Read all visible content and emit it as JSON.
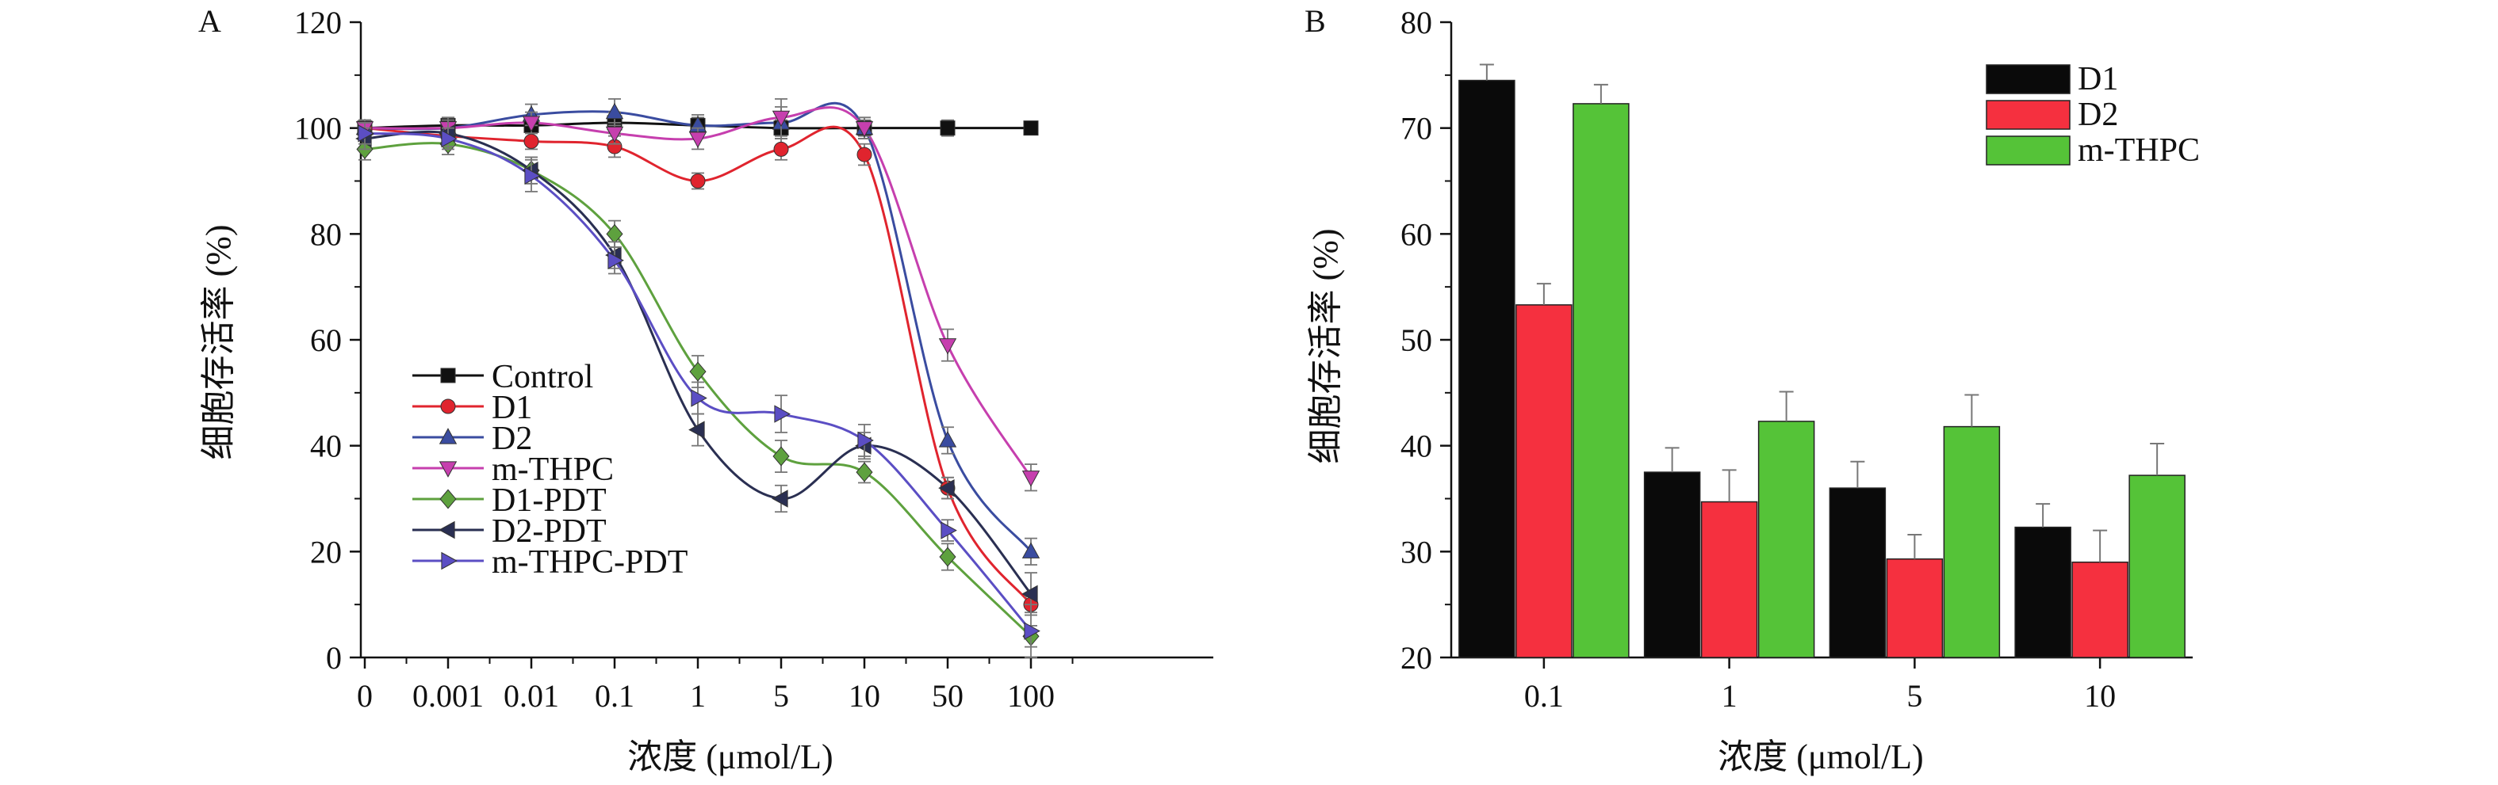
{
  "chart_data": [
    {
      "panel_label": "A",
      "type": "line",
      "xlabel": "浓度 (μmol/L)",
      "ylabel": "细胞存活率 (%)",
      "categories": [
        "0",
        "0.001",
        "0.01",
        "0.1",
        "1",
        "5",
        "10",
        "50",
        "100"
      ],
      "ylim": [
        0,
        120
      ],
      "yticks": [
        0,
        20,
        40,
        60,
        80,
        100,
        120
      ],
      "legend_position": "lower-left",
      "series": [
        {
          "name": "Control",
          "marker": "square",
          "color": "#111111",
          "values": [
            100,
            100.5,
            100.5,
            101,
            100.5,
            100,
            100,
            100,
            100
          ],
          "errors": [
            1.5,
            1.5,
            1.5,
            2,
            1.5,
            1.5,
            1.5,
            1.5,
            1
          ]
        },
        {
          "name": "D1",
          "marker": "circle",
          "color": "#e0242e",
          "values": [
            100,
            98.5,
            97.5,
            96.5,
            90,
            96,
            95,
            32,
            10
          ],
          "errors": [
            1.5,
            1.5,
            1.5,
            2,
            1.5,
            2,
            2,
            2,
            1.5
          ]
        },
        {
          "name": "D2",
          "marker": "triangle-up",
          "color": "#3a4ca0",
          "values": [
            100,
            100,
            102.5,
            103,
            100.5,
            101,
            100,
            41,
            20
          ],
          "errors": [
            1.5,
            2,
            2,
            2.5,
            2,
            3,
            2,
            2.5,
            2.5
          ]
        },
        {
          "name": "m-THPC",
          "marker": "triangle-down",
          "color": "#c63fae",
          "values": [
            100,
            100,
            101,
            99,
            98,
            102,
            100,
            59,
            34
          ],
          "errors": [
            1.5,
            1.5,
            2,
            2,
            2,
            3.5,
            2,
            3,
            2.5
          ]
        },
        {
          "name": "D1-PDT",
          "marker": "diamond",
          "color": "#5ea13e",
          "values": [
            96,
            97,
            92,
            80,
            54,
            38,
            35,
            19,
            4
          ],
          "errors": [
            2,
            2,
            2.5,
            2.5,
            3,
            3,
            2,
            2.5,
            2
          ]
        },
        {
          "name": "D2-PDT",
          "marker": "triangle-left",
          "color": "#2a2f52",
          "values": [
            98,
            99,
            92,
            76,
            43,
            30,
            40,
            32,
            12
          ],
          "errors": [
            2,
            2.5,
            2.5,
            2.5,
            3,
            2.5,
            2.5,
            2,
            4
          ]
        },
        {
          "name": "m-THPC-PDT",
          "marker": "triangle-right",
          "color": "#5b4ec4",
          "values": [
            99,
            98,
            91,
            75,
            49,
            46,
            41,
            24,
            5
          ],
          "errors": [
            2,
            2,
            3,
            2.5,
            3,
            3.5,
            3,
            2,
            5
          ]
        }
      ]
    },
    {
      "panel_label": "B",
      "type": "bar",
      "xlabel": "浓度 (μmol/L)",
      "ylabel": "细胞存活率 (%)",
      "categories": [
        "0.1",
        "1",
        "5",
        "10"
      ],
      "ylim": [
        20,
        80
      ],
      "yticks": [
        20,
        30,
        40,
        50,
        60,
        70,
        80
      ],
      "legend_position": "top-right",
      "series": [
        {
          "name": "D1",
          "color": "#0a0a0a",
          "values": [
            74.5,
            37.5,
            36,
            32.3
          ],
          "errors": [
            1.5,
            2.3,
            2.5,
            2.2
          ]
        },
        {
          "name": "D2",
          "color": "#f5303f",
          "values": [
            53.3,
            34.7,
            29.3,
            29
          ],
          "errors": [
            2,
            3,
            2.3,
            3
          ]
        },
        {
          "name": "m-THPC",
          "color": "#55c338",
          "values": [
            72.3,
            42.3,
            41.8,
            37.2
          ],
          "errors": [
            1.8,
            2.8,
            3,
            3
          ]
        }
      ]
    }
  ]
}
